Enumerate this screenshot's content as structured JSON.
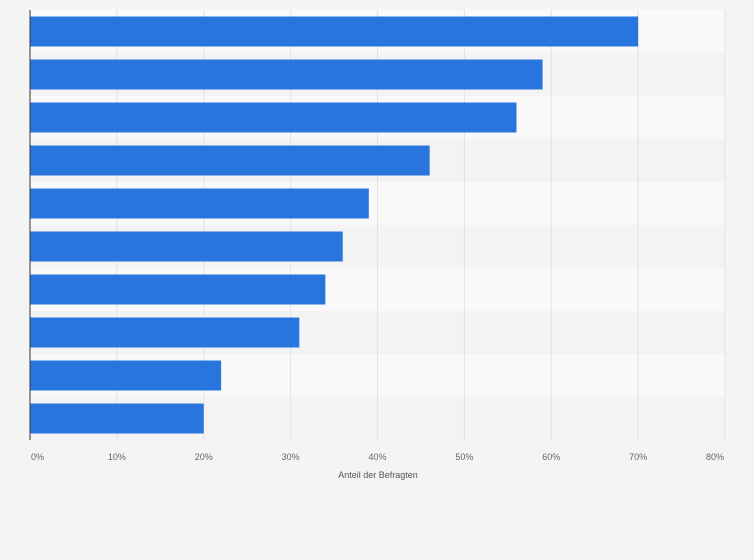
{
  "chart_data": {
    "type": "bar",
    "orientation": "horizontal",
    "categories": [
      "",
      "",
      "",
      "",
      "",
      "",
      "",
      "",
      "",
      ""
    ],
    "values": [
      70,
      59,
      56,
      46,
      39,
      36,
      34,
      31,
      22,
      20
    ],
    "xlabel": "Anteil der Befragten",
    "ylabel": "",
    "xlim": [
      0,
      80
    ],
    "x_ticks": [
      "0%",
      "10%",
      "20%",
      "30%",
      "40%",
      "50%",
      "60%",
      "70%",
      "80%"
    ],
    "grid": true,
    "legend": "none",
    "colors": {
      "bar": "#2876dd",
      "band_light": "#f9f9f9",
      "band_dark": "#f3f3f3",
      "grid": "#e2e2e2",
      "axis": "#333333"
    }
  }
}
